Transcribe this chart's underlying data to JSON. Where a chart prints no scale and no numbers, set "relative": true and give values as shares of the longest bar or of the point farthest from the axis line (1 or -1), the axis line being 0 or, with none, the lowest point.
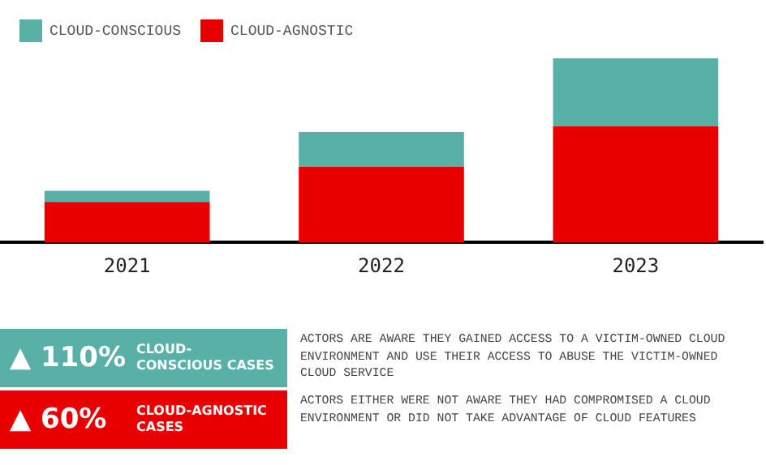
{
  "chart_data": {
    "type": "bar",
    "stacked": true,
    "relative": true,
    "categories": [
      "2021",
      "2022",
      "2023"
    ],
    "series": [
      {
        "name": "CLOUD-AGNOSTIC",
        "color": "#e80000",
        "values": [
          0.22,
          0.41,
          0.63
        ]
      },
      {
        "name": "CLOUD-CONSCIOUS",
        "color": "#58b0a6",
        "values": [
          0.06,
          0.19,
          0.37
        ]
      }
    ],
    "legend": "top left",
    "grid": false,
    "annotations": [
      "▲ 110%",
      "CLOUD-CONSCIOUS CASES",
      "ACTORS ARE AWARE THEY GAINED ACCESS TO A VICTIM-OWNED CLOUD ENVIRONMENT AND USE THEIR ACCESS TO ABUSE THE VICTIM-OWNED CLOUD SERVICE",
      "▲ 60%",
      "CLOUD-AGNOSTIC CASES",
      "ACTORS EITHER WERE NOT AWARE THEY HAD COMPROMISED A CLOUD ENVIRONMENT OR DID NOT TAKE ADVANTAGE OF CLOUD FEATURES"
    ]
  }
}
